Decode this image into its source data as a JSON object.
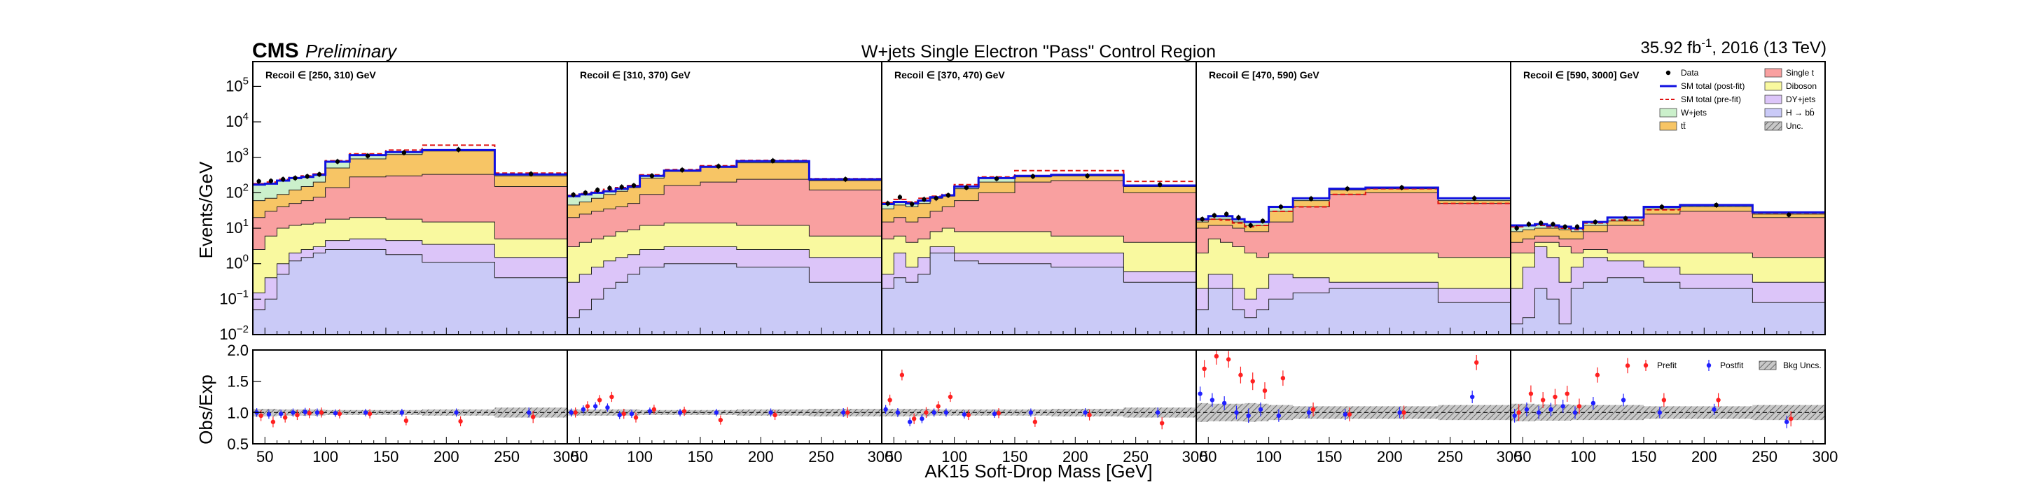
{
  "header": {
    "experiment": "CMS",
    "status": "Preliminary",
    "title": "W+jets Single Electron \"Pass\" Control Region",
    "lumi_prefix": "35.92 fb",
    "lumi_exp": "-1",
    "lumi_suffix": ", 2016 (13 TeV)"
  },
  "colors": {
    "single_t": "#f9a0a0",
    "diboson": "#f9f99f",
    "dyjets": "#dcc5f9",
    "hbb": "#cacaf7",
    "ttbar": "#f7c565",
    "wjets": "#cbf0cb",
    "postfit_line": "#1010e0",
    "prefit_line": "#e01010",
    "prefit_marker": "#ff2020",
    "postfit_marker": "#2020ff",
    "unc": "#a0a0a0"
  },
  "chart_data": {
    "type": "bar",
    "stacked": true,
    "xlabel": "AK15 Soft-Drop Mass [GeV]",
    "ylabel": "Events/GeV",
    "ratio_ylabel": "Obs/Exp",
    "ylim": [
      0.01,
      500000
    ],
    "y_scale": "log",
    "ratio_ylim": [
      0.5,
      2.0
    ],
    "xlim": [
      40,
      300
    ],
    "x_ticks": [
      50,
      100,
      150,
      200,
      250,
      300
    ],
    "y_ticks": [
      {
        "base": "10",
        "exp": "5"
      },
      {
        "base": "10",
        "exp": "4"
      },
      {
        "base": "10",
        "exp": "3"
      },
      {
        "base": "10",
        "exp": "2"
      },
      {
        "base": "10",
        "exp": "1"
      },
      {
        "base": "10",
        "exp": "0"
      },
      {
        "base": "10",
        "exp": "−1"
      },
      {
        "base": "10",
        "exp": "−2"
      }
    ],
    "ratio_ticks": [
      "2.0",
      "1.5",
      "1.0",
      "0.5"
    ],
    "bins": [
      40,
      50,
      60,
      70,
      80,
      90,
      100,
      120,
      150,
      180,
      240,
      300
    ],
    "legend_main": [
      {
        "label": "Data",
        "kind": "marker"
      },
      {
        "label": "SM total (post-fit)",
        "kind": "line_blue"
      },
      {
        "label": "SM total (pre-fit)",
        "kind": "line_red_dash"
      },
      {
        "label": "W+jets",
        "kind": "fill_wjets"
      },
      {
        "label": "tt̄",
        "kind": "fill_ttbar"
      },
      {
        "label": "Single t",
        "kind": "fill_single_t"
      },
      {
        "label": "Diboson",
        "kind": "fill_diboson"
      },
      {
        "label": "DY+jets",
        "kind": "fill_dyjets"
      },
      {
        "label": "H → bb̄",
        "kind": "fill_hbb"
      },
      {
        "label": "Unc.",
        "kind": "fill_unc"
      }
    ],
    "legend_ratio": [
      "Prefit",
      "Postfit",
      "Bkg Uncs."
    ],
    "panels": [
      {
        "label": "Recoil ∈ [250, 310) GeV",
        "hbb": [
          0.05,
          0.1,
          0.5,
          1.2,
          1.5,
          2.0,
          2.5,
          2.5,
          1.8,
          1.1,
          0.4
        ],
        "dyjets": [
          0.15,
          0.4,
          1.0,
          2.0,
          2.5,
          3.0,
          4.5,
          5.0,
          4.5,
          3.5,
          1.5
        ],
        "diboson": [
          2.5,
          6,
          10,
          12,
          13,
          14,
          18,
          20,
          18,
          15,
          5
        ],
        "single_t": [
          20,
          30,
          40,
          50,
          60,
          75,
          140,
          280,
          300,
          330,
          150
        ],
        "ttbar": [
          60,
          70,
          90,
          120,
          150,
          200,
          500,
          900,
          1200,
          1500,
          300
        ],
        "wjets": [
          170,
          180,
          220,
          260,
          280,
          320,
          750,
          1150,
          1400,
          1600,
          330
        ],
        "prefit": [
          180,
          200,
          240,
          270,
          300,
          340,
          800,
          1250,
          1600,
          2200,
          360
        ],
        "data": [
          210,
          215,
          240,
          260,
          290,
          330,
          760,
          1100,
          1350,
          1650,
          340
        ],
        "r_post": [
          1.0,
          0.97,
          0.98,
          1.0,
          1.01,
          1.0,
          0.99,
          1.0,
          1.0,
          1.0,
          1.0
        ],
        "r_pre": [
          0.95,
          0.85,
          0.92,
          0.96,
          0.99,
          1.0,
          0.98,
          0.98,
          0.87,
          0.86,
          0.93
        ],
        "band": [
          0.06,
          0.06,
          0.05,
          0.05,
          0.05,
          0.05,
          0.04,
          0.04,
          0.04,
          0.05,
          0.08
        ]
      },
      {
        "label": "Recoil ∈ [310, 370) GeV",
        "hbb": [
          0.03,
          0.05,
          0.1,
          0.2,
          0.3,
          0.5,
          0.8,
          1.0,
          1.0,
          0.8,
          0.3
        ],
        "dyjets": [
          0.3,
          0.5,
          0.8,
          1.2,
          1.5,
          1.8,
          2.5,
          3.0,
          3.0,
          2.5,
          1.5
        ],
        "diboson": [
          3,
          4,
          5,
          6,
          8,
          9,
          12,
          14,
          14,
          12,
          6
        ],
        "single_t": [
          20,
          25,
          30,
          35,
          40,
          50,
          90,
          160,
          200,
          240,
          120
        ],
        "ttbar": [
          45,
          55,
          70,
          90,
          110,
          140,
          260,
          400,
          520,
          700,
          220
        ],
        "wjets": [
          80,
          90,
          100,
          110,
          130,
          150,
          300,
          420,
          540,
          780,
          240
        ],
        "prefit": [
          85,
          95,
          110,
          125,
          140,
          160,
          320,
          450,
          580,
          820,
          250
        ],
        "data": [
          88,
          100,
          120,
          135,
          145,
          160,
          300,
          440,
          560,
          800,
          240
        ],
        "r_post": [
          1.0,
          1.05,
          1.1,
          1.08,
          0.96,
          0.98,
          1.02,
          1.0,
          1.0,
          1.0,
          1.0
        ],
        "r_pre": [
          1.0,
          1.1,
          1.2,
          1.25,
          0.98,
          0.92,
          1.05,
          1.02,
          0.88,
          0.96,
          1.0
        ],
        "band": [
          0.05,
          0.05,
          0.05,
          0.05,
          0.05,
          0.05,
          0.04,
          0.04,
          0.04,
          0.05,
          0.06
        ]
      },
      {
        "label": "Recoil ∈ [370, 470) GeV",
        "hbb": [
          0.2,
          0.4,
          0.3,
          0.5,
          2.0,
          2.0,
          1.2,
          1.0,
          1.0,
          0.8,
          0.3
        ],
        "dyjets": [
          0.5,
          2.0,
          0.8,
          1.5,
          3.0,
          3.0,
          2.0,
          2.0,
          2.0,
          2.0,
          0.6
        ],
        "diboson": [
          5,
          6,
          4,
          5,
          8,
          10,
          8,
          8,
          8,
          6,
          4
        ],
        "single_t": [
          15,
          20,
          15,
          20,
          30,
          40,
          60,
          100,
          200,
          220,
          100
        ],
        "ttbar": [
          35,
          45,
          40,
          50,
          70,
          80,
          130,
          200,
          280,
          300,
          150
        ],
        "wjets": [
          48,
          55,
          50,
          60,
          75,
          85,
          150,
          260,
          300,
          320,
          160
        ],
        "prefit": [
          52,
          65,
          55,
          70,
          80,
          90,
          170,
          280,
          420,
          420,
          210
        ],
        "data": [
          50,
          75,
          48,
          65,
          70,
          85,
          140,
          250,
          290,
          300,
          170
        ],
        "r_post": [
          1.05,
          1.0,
          0.85,
          0.9,
          1.0,
          1.0,
          0.97,
          0.98,
          1.0,
          1.0,
          1.0
        ],
        "r_pre": [
          1.2,
          1.6,
          0.9,
          1.0,
          1.1,
          1.25,
          0.96,
          0.99,
          0.85,
          0.96,
          0.83
        ],
        "band": [
          0.06,
          0.06,
          0.06,
          0.06,
          0.05,
          0.05,
          0.05,
          0.05,
          0.05,
          0.06,
          0.08
        ]
      },
      {
        "label": "Recoil ∈ [470, 590) GeV",
        "hbb": [
          0.05,
          0.2,
          0.2,
          0.05,
          0.03,
          0.05,
          0.1,
          0.15,
          0.2,
          0.2,
          0.08
        ],
        "dyjets": [
          0.2,
          0.5,
          0.5,
          0.2,
          0.1,
          0.2,
          0.5,
          0.4,
          0.3,
          0.3,
          0.2
        ],
        "diboson": [
          2,
          5,
          4,
          3,
          2,
          1.5,
          2,
          2,
          2,
          2,
          1.5
        ],
        "single_t": [
          10,
          12,
          12,
          10,
          8,
          8,
          15,
          40,
          90,
          100,
          50
        ],
        "ttbar": [
          15,
          18,
          18,
          15,
          12,
          12,
          30,
          60,
          120,
          130,
          60
        ],
        "wjets": [
          18,
          22,
          22,
          18,
          15,
          15,
          40,
          70,
          130,
          140,
          70
        ],
        "prefit": [
          17,
          18,
          17,
          14,
          11,
          12,
          30,
          40,
          90,
          130,
          50
        ],
        "data": [
          18,
          23,
          25,
          20,
          12,
          16,
          40,
          68,
          130,
          140,
          70
        ],
        "r_post": [
          1.3,
          1.2,
          1.15,
          1.0,
          0.95,
          1.05,
          0.95,
          1.0,
          0.97,
          1.0,
          1.25
        ],
        "r_pre": [
          1.7,
          1.9,
          1.85,
          1.6,
          1.5,
          1.35,
          1.55,
          1.05,
          0.97,
          1.0,
          1.8
        ],
        "band": [
          0.15,
          0.14,
          0.14,
          0.14,
          0.15,
          0.14,
          0.12,
          0.1,
          0.1,
          0.1,
          0.12
        ]
      },
      {
        "label": "Recoil ∈ [590, 3000] GeV",
        "hbb": [
          0.02,
          0.03,
          0.2,
          0.1,
          0.02,
          0.2,
          0.3,
          0.4,
          0.3,
          0.2,
          0.08
        ],
        "dyjets": [
          0.2,
          0.8,
          3.0,
          1.5,
          0.3,
          0.8,
          1.5,
          1.2,
          0.8,
          0.5,
          0.3
        ],
        "diboson": [
          2,
          2,
          4,
          4,
          3,
          2,
          2.5,
          2,
          2,
          2,
          1.5
        ],
        "single_t": [
          4,
          5,
          6,
          6,
          5,
          5,
          8,
          12,
          25,
          30,
          20
        ],
        "ttbar": [
          8,
          9,
          10,
          10,
          9,
          8,
          12,
          16,
          35,
          40,
          25
        ],
        "wjets": [
          12,
          12,
          13,
          12,
          11,
          10,
          15,
          20,
          40,
          45,
          28
        ],
        "prefit": [
          11,
          12,
          12,
          11,
          10,
          9,
          14,
          17,
          33,
          44,
          27
        ],
        "data": [
          10,
          13,
          14,
          13,
          11,
          11,
          15,
          19,
          40,
          45,
          24
        ],
        "r_post": [
          0.95,
          1.05,
          1.0,
          1.05,
          1.1,
          1.0,
          1.15,
          1.2,
          1.0,
          1.05,
          0.85
        ],
        "r_pre": [
          1.0,
          1.3,
          1.2,
          1.25,
          1.3,
          1.1,
          1.6,
          1.75,
          1.2,
          1.2,
          0.9
        ],
        "band": [
          0.14,
          0.14,
          0.13,
          0.13,
          0.13,
          0.12,
          0.12,
          0.12,
          0.1,
          0.1,
          0.12
        ]
      }
    ]
  }
}
